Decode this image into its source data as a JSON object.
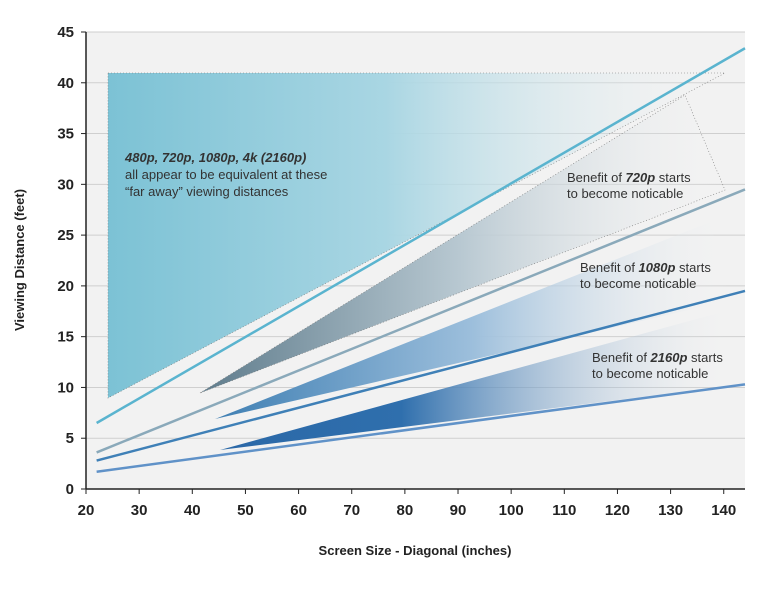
{
  "chart_data": {
    "type": "line",
    "xlabel": "Screen Size - Diagonal (inches)",
    "ylabel": "Viewing Distance (feet)",
    "x": [
      22,
      144
    ],
    "series": [
      {
        "color": "#5ab4cf",
        "values": [
          6.5,
          43.4
        ]
      },
      {
        "color": "#8aa9ba",
        "values": [
          3.6,
          29.5
        ]
      },
      {
        "color": "#3f80b7",
        "values": [
          2.8,
          19.5
        ]
      },
      {
        "color": "#6092c8",
        "values": [
          1.7,
          10.3
        ]
      }
    ],
    "xlim": [
      20,
      144
    ],
    "ylim": [
      0,
      45
    ],
    "xticks": [
      20,
      30,
      40,
      50,
      60,
      70,
      80,
      90,
      100,
      110,
      120,
      130,
      140
    ],
    "yticks": [
      0,
      5,
      10,
      15,
      20,
      25,
      30,
      35,
      40,
      45
    ],
    "grid": true,
    "annotations": [
      [
        "480p, 720p, 1080p, 4k (2160p)",
        "all appear to be equivalent at these",
        "“far away” viewing distances"
      ],
      [
        "Benefit of ",
        "720p",
        " starts",
        "to become noticable"
      ],
      [
        "Benefit of ",
        "1080p",
        " starts",
        "to become noticable"
      ],
      [
        "Benefit of ",
        "2160p",
        " starts",
        "to become noticable"
      ]
    ]
  }
}
